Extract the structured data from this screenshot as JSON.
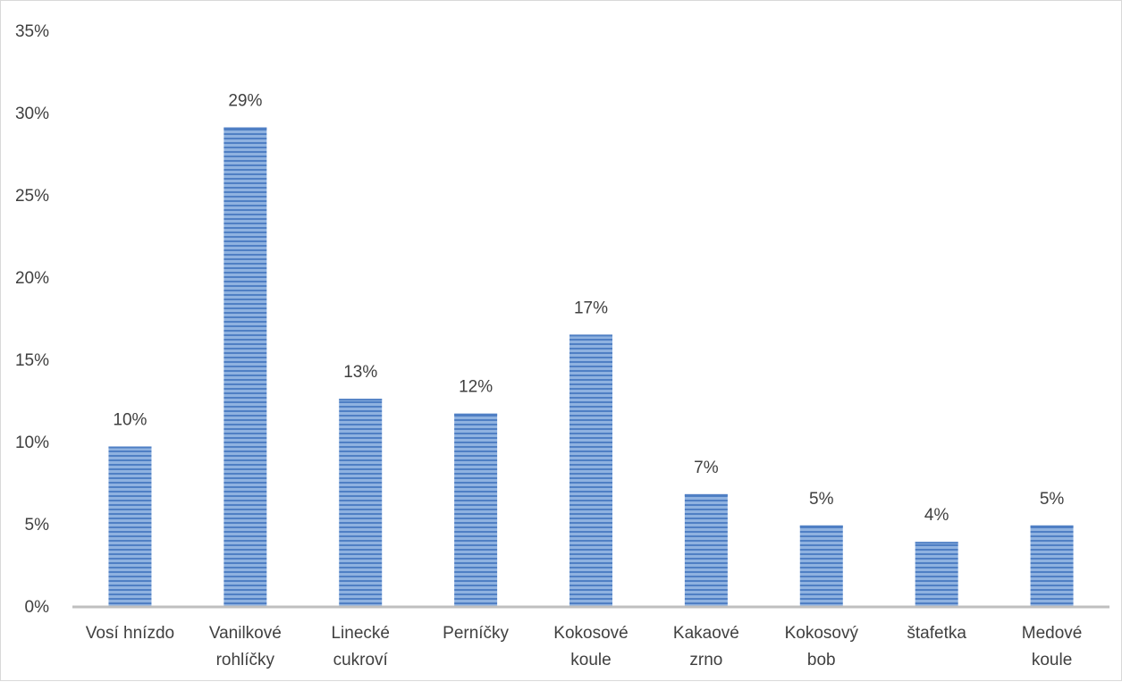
{
  "chart_data": {
    "type": "bar",
    "title": "",
    "xlabel": "",
    "ylabel": "",
    "categories": [
      [
        "Vosí hnízdo"
      ],
      [
        "Vanilkové",
        "rohlíčky"
      ],
      [
        "Linecké",
        "cukroví"
      ],
      [
        "Perníčky"
      ],
      [
        "Kokosové",
        "koule"
      ],
      [
        "Kakaové",
        "zrno"
      ],
      [
        "Kokosový",
        "bob"
      ],
      [
        "štafetka"
      ],
      [
        "Medové",
        "koule"
      ]
    ],
    "values": [
      9.7,
      29.1,
      12.6,
      11.7,
      16.5,
      6.8,
      4.9,
      3.9,
      4.9
    ],
    "data_labels": [
      "10%",
      "29%",
      "13%",
      "12%",
      "17%",
      "7%",
      "5%",
      "4%",
      "5%"
    ],
    "ylim": [
      0,
      35
    ],
    "yticks": [
      0,
      5,
      10,
      15,
      20,
      25,
      30,
      35
    ],
    "ytick_labels": [
      "0%",
      "5%",
      "10%",
      "15%",
      "20%",
      "25%",
      "30%",
      "35%"
    ],
    "grid": false,
    "legend": "none",
    "colors": {
      "bar_fill": "#8fb2e0",
      "bar_stripe": "#4f7fc4",
      "axis": "#bfbfbf",
      "text": "#404040"
    }
  }
}
